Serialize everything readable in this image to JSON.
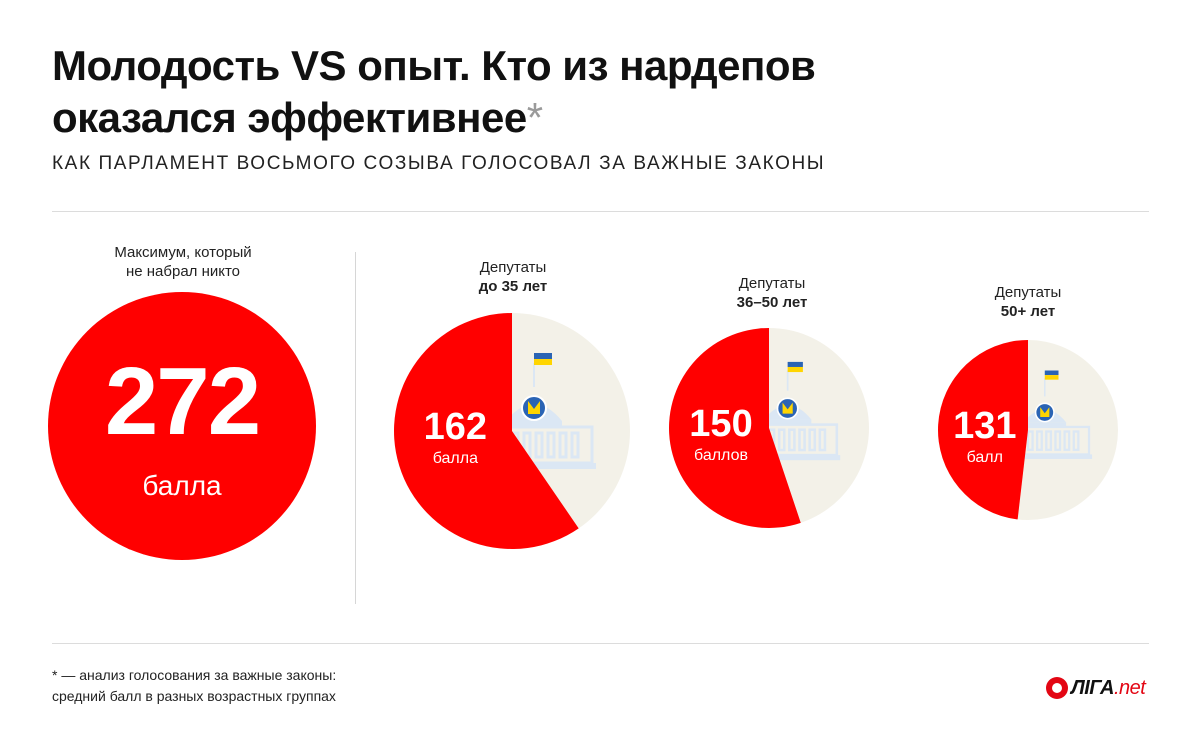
{
  "header": {
    "title_line1": "Молодость VS опыт. Кто из нардепов",
    "title_line2": "оказался эффективнее",
    "title_asterisk": "*",
    "subtitle": "КАК ПАРЛАМЕНТ ВОСЬМОГО СОЗЫВА ГОЛОСОВАЛ ЗА ВАЖНЫЕ ЗАКОНЫ"
  },
  "maximum": {
    "caption_line1": "Максимум, который",
    "caption_line2": "не набрал никто",
    "value": "272",
    "unit": "балла"
  },
  "chart_data": {
    "type": "pie",
    "max_value": 272,
    "colors": {
      "score": "#ff0000",
      "remainder": "#f3f1e8",
      "building": "#dbe7f4",
      "emblem": "#2a64b4",
      "flag_blue": "#2a64b4",
      "flag_yellow": "#ffd500"
    },
    "groups": [
      {
        "caption_line1": "Депутаты",
        "caption_line2": "до 35 лет",
        "value": 162,
        "value_label": "162",
        "unit": "балла"
      },
      {
        "caption_line1": "Депутаты",
        "caption_line2": "36–50 лет",
        "value": 150,
        "value_label": "150",
        "unit": "баллов"
      },
      {
        "caption_line1": "Депутаты",
        "caption_line2": "50+ лет",
        "value": 131,
        "value_label": "131",
        "unit": "балл"
      }
    ]
  },
  "footnote": {
    "line1": "* — анализ голосования за важные законы:",
    "line2": "средний балл в разных возрастных группах"
  },
  "logo": {
    "name": "ЛІГА",
    "suffix": ".net"
  }
}
